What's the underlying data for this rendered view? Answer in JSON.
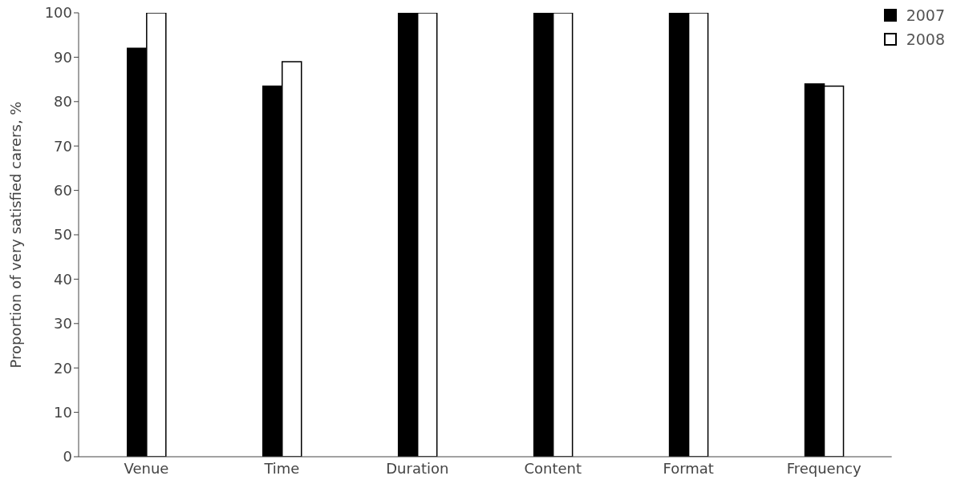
{
  "chart_data": {
    "type": "bar",
    "ylabel": "Proportion of very satisfied carers, %",
    "categories": [
      "Venue",
      "Time",
      "Duration",
      "Content",
      "Format",
      "Frequency"
    ],
    "series": [
      {
        "name": "2007",
        "color": "#000000",
        "values": [
          92,
          83.5,
          100,
          100,
          100,
          84
        ]
      },
      {
        "name": "2008",
        "color": "#ffffff",
        "values": [
          100,
          89,
          100,
          100,
          100,
          83.5
        ]
      }
    ],
    "ylim": [
      0,
      100
    ],
    "yticks": [
      0,
      10,
      20,
      30,
      40,
      50,
      60,
      70,
      80,
      90,
      100
    ],
    "grid": false,
    "legend": "top right"
  }
}
